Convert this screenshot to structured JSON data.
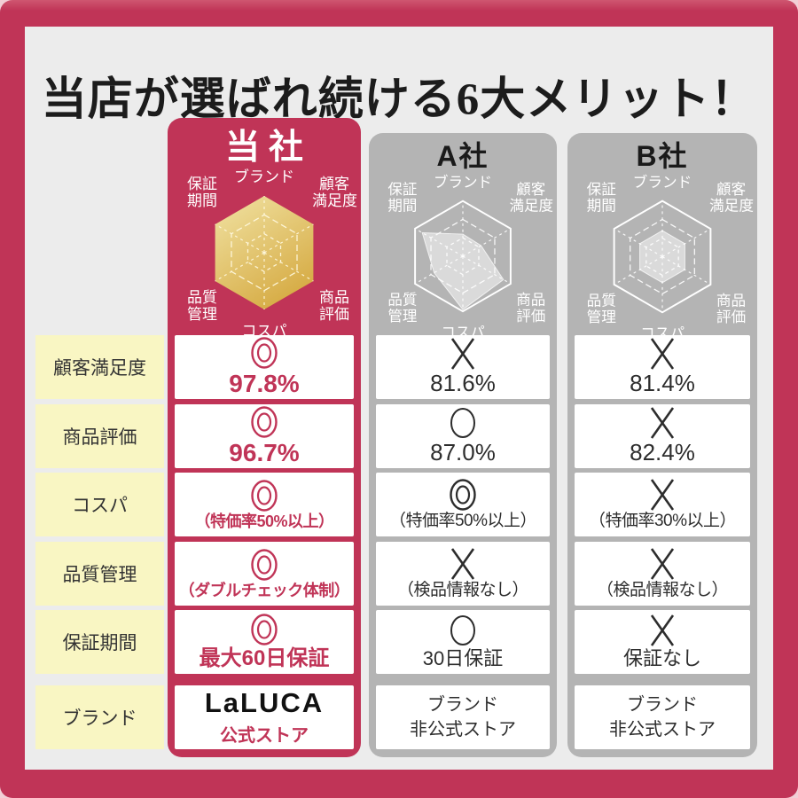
{
  "title": "当店が選ばれ続ける6大メリット！",
  "colors": {
    "accent_crimson": "#c03457",
    "competitor_gray": "#b4b4b4",
    "canvas_gray": "#ececec",
    "label_yellow": "#f9f6c3",
    "gold_light": "#f1e3a4",
    "gold_dark": "#d7ad47",
    "cell_white": "#ffffff",
    "dark_text": "#2d2d2d"
  },
  "radar": {
    "levels": 3,
    "axes": [
      {
        "name": "brand",
        "lines": [
          "ブランド"
        ]
      },
      {
        "name": "customer-satisfaction",
        "lines": [
          "顧客",
          "満足度"
        ]
      },
      {
        "name": "product-rating",
        "lines": [
          "商品",
          "評価"
        ]
      },
      {
        "name": "cost-performance",
        "lines": [
          "コスパ"
        ]
      },
      {
        "name": "quality-control",
        "lines": [
          "品質",
          "管理"
        ]
      },
      {
        "name": "warranty-period",
        "lines": [
          "保証",
          "期間"
        ]
      }
    ]
  },
  "columns": [
    {
      "id": "ours",
      "label": "当社",
      "style": "ours",
      "radar_values": [
        3,
        3,
        3,
        3,
        3,
        3
      ]
    },
    {
      "id": "company-a",
      "label": "A社",
      "style": "competitor",
      "radar_values": [
        1.2,
        1.15,
        2.55,
        2.9,
        1.8,
        2.55
      ]
    },
    {
      "id": "company-b",
      "label": "B社",
      "style": "competitor",
      "radar_values": [
        1.4,
        1.4,
        1.4,
        1.4,
        1.4,
        1.4
      ]
    }
  ],
  "rows": [
    {
      "label": "顧客満足度",
      "cells": [
        {
          "symbol": "double-circle",
          "text": "97.8%"
        },
        {
          "symbol": "cross",
          "text": "81.6%"
        },
        {
          "symbol": "cross",
          "text": "81.4%"
        }
      ]
    },
    {
      "label": "商品評価",
      "cells": [
        {
          "symbol": "double-circle",
          "text": "96.7%"
        },
        {
          "symbol": "circle",
          "text": "87.0%"
        },
        {
          "symbol": "cross",
          "text": "82.4%"
        }
      ]
    },
    {
      "label": "コスパ",
      "cells": [
        {
          "symbol": "double-circle",
          "text": "（特価率50%以上）"
        },
        {
          "symbol": "double-circle",
          "text": "（特価率50%以上）"
        },
        {
          "symbol": "cross",
          "text": "（特価率30%以上）"
        }
      ]
    },
    {
      "label": "品質管理",
      "cells": [
        {
          "symbol": "double-circle",
          "text": "（ダブルチェック体制）"
        },
        {
          "symbol": "cross",
          "text": "（検品情報なし）"
        },
        {
          "symbol": "cross",
          "text": "（検品情報なし）"
        }
      ]
    },
    {
      "label": "保証期間",
      "cells": [
        {
          "symbol": "double-circle",
          "text": "最大60日保証"
        },
        {
          "symbol": "circle",
          "text": "30日保証"
        },
        {
          "symbol": "cross",
          "text": "保証なし"
        }
      ]
    },
    {
      "label": "ブランド",
      "cells": [
        {
          "brand": "LaLUCA",
          "sub": "公式ストア"
        },
        {
          "lines": [
            "ブランド",
            "非公式ストア"
          ]
        },
        {
          "lines": [
            "ブランド",
            "非公式ストア"
          ]
        }
      ]
    }
  ]
}
